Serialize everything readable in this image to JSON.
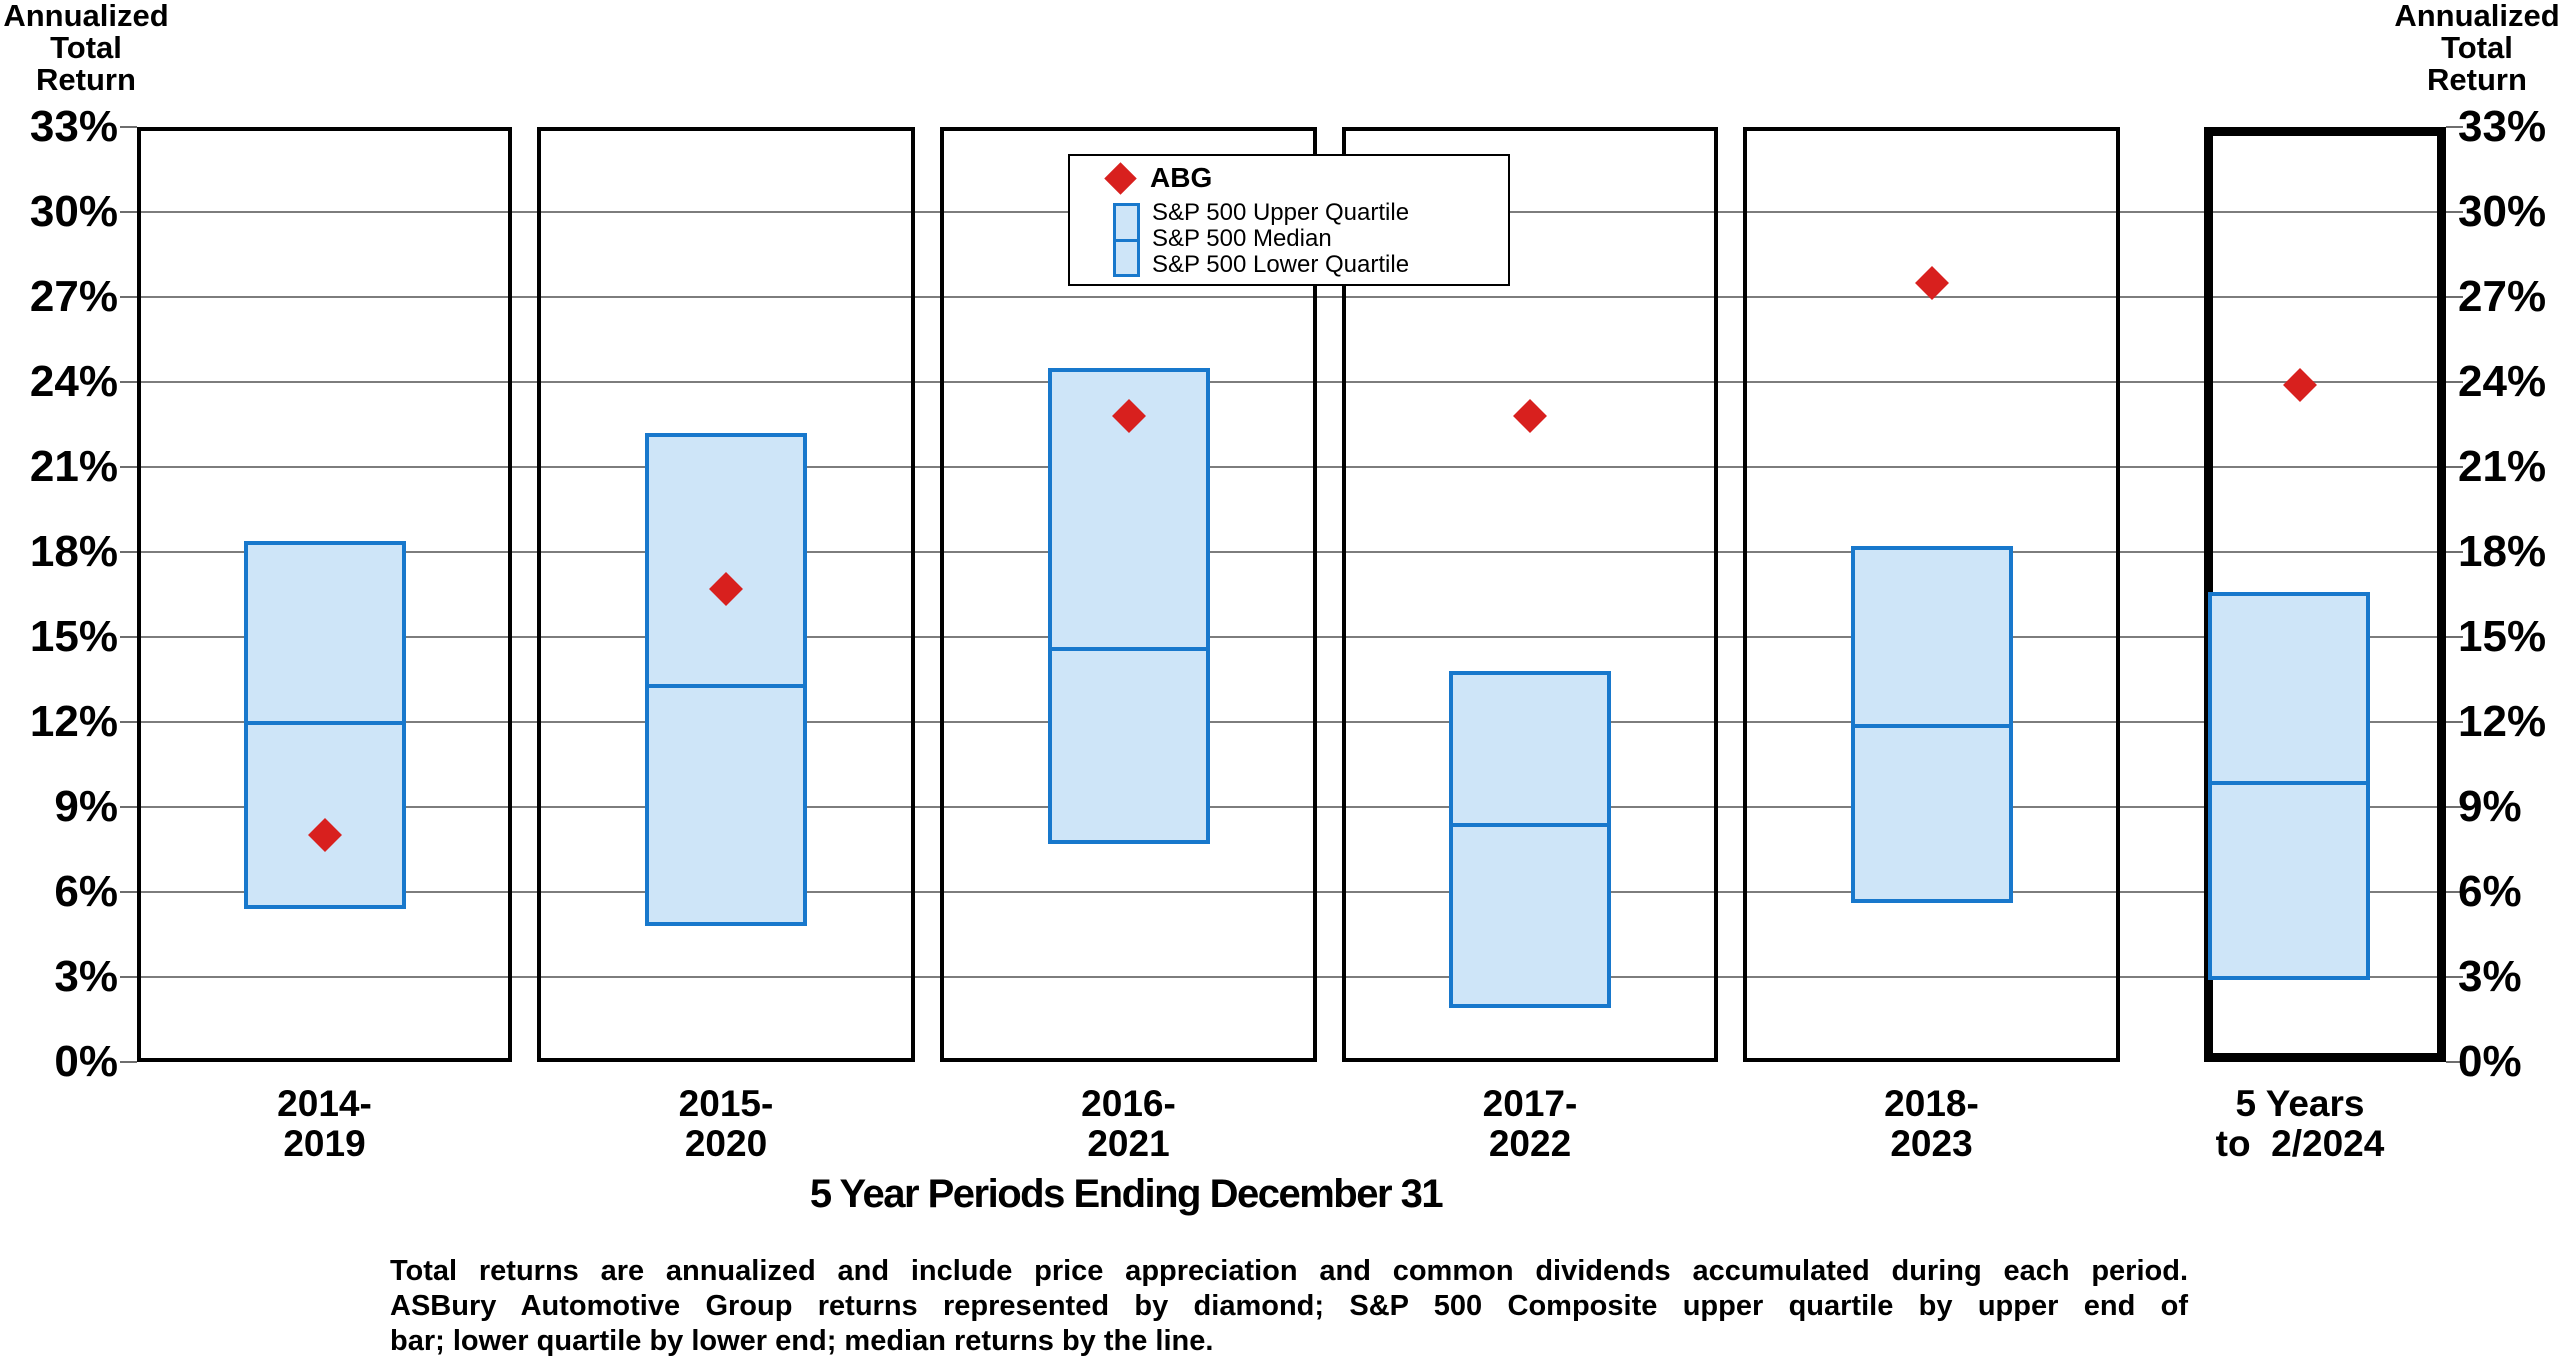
{
  "axis_title_lines": [
    "Annualized",
    "Total",
    "Return"
  ],
  "legend": {
    "abg_label": "ABG",
    "items": [
      "S&P 500 Upper Quartile",
      "S&P 500 Median",
      "S&P 500 Lower Quartile"
    ]
  },
  "footer": {
    "lines": [
      "Total returns are annualized and include price appreciation and common dividends accumulated during each period.",
      "ASBury Automotive Group returns represented by diamond; S&P 500 Composite upper quartile by upper end of",
      "bar; lower quartile by lower end; median returns by the line."
    ]
  },
  "chart_data": {
    "type": "box-with-markers",
    "title": "",
    "xlabel": "5 Year Periods Ending December 31",
    "ylabel": "Annualized Total Return",
    "y_axis": {
      "min": 0,
      "max": 33,
      "step": 3,
      "tick_suffix": "%"
    },
    "tick_labels": [
      "0%",
      "3%",
      "6%",
      "9%",
      "12%",
      "15%",
      "18%",
      "21%",
      "24%",
      "27%",
      "30%",
      "33%"
    ],
    "grid": true,
    "legend_position": "top-center",
    "categories": [
      [
        "2014-",
        "2019"
      ],
      [
        "2015-",
        "2020"
      ],
      [
        "2016-",
        "2021"
      ],
      [
        "2017-",
        "2022"
      ],
      [
        "2018-",
        "2023"
      ],
      [
        "5 Years",
        "to  2/2024"
      ]
    ],
    "series": [
      {
        "name": "ABG",
        "marker": "diamond",
        "values": [
          8.0,
          16.7,
          22.8,
          22.8,
          27.5,
          23.9
        ]
      },
      {
        "name": "S&P 500 Upper Quartile",
        "values": [
          18.4,
          22.2,
          24.5,
          13.8,
          18.2,
          16.6
        ]
      },
      {
        "name": "S&P 500 Median",
        "values": [
          12.1,
          13.4,
          14.7,
          8.5,
          12.0,
          10.0
        ]
      },
      {
        "name": "S&P 500 Lower Quartile",
        "values": [
          5.4,
          4.8,
          7.7,
          1.9,
          5.6,
          2.9
        ]
      }
    ],
    "colors": {
      "abg_diamond": "#d8201e",
      "box_fill": "#cee5f8",
      "box_border": "#1878cc",
      "gridline": "#7d7d7d",
      "panel_border": "#000000"
    }
  }
}
